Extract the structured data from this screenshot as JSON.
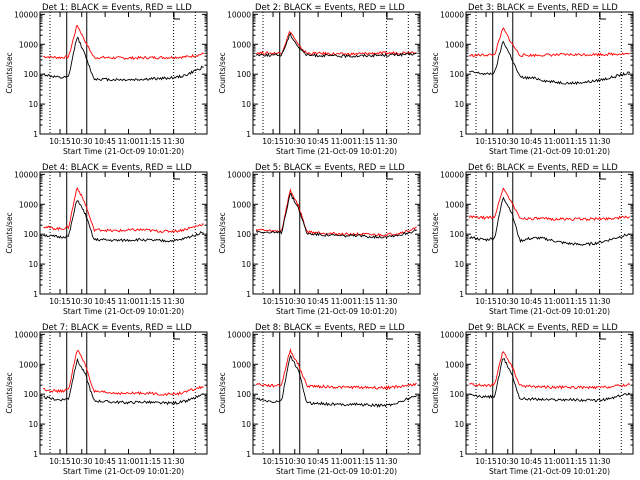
{
  "figure": {
    "description_line_colors": {
      "events": "#000000",
      "lld": "#ff0000"
    },
    "background": "#ffffff"
  },
  "chart_data": [
    {
      "type": "line",
      "detector": "1",
      "title": "Det 1: BLACK = Events, RED = LLD",
      "xlabel": "Start Time (21-Oct-09 10:01:20)",
      "ylabel": "Counts/sec",
      "xticks": [
        "10:15",
        "10:30",
        "10:45",
        "11:00",
        "11:15",
        "11:30"
      ],
      "yticks": [
        "1",
        "10",
        "100",
        "1000",
        "10000"
      ],
      "ylim": [
        1,
        12000
      ],
      "yscale": "log",
      "series": [
        {
          "name": "LLD",
          "color": "#ff0000",
          "values": [
            390,
            370,
            360,
            380,
            4500,
            1200,
            360,
            360,
            355,
            350,
            345,
            350,
            355,
            360,
            360,
            365,
            370,
            380,
            420,
            480
          ]
        },
        {
          "name": "Events",
          "color": "#000000",
          "values": [
            100,
            85,
            75,
            80,
            1900,
            400,
            70,
            68,
            66,
            66,
            65,
            66,
            68,
            70,
            72,
            75,
            80,
            95,
            130,
            180
          ]
        }
      ]
    },
    {
      "type": "line",
      "detector": "2",
      "title": "Det 2: BLACK = Events, RED = LLD",
      "xlabel": "Start Time (21-Oct-09 10:01:20)",
      "ylabel": "Counts/sec",
      "xticks": [
        "10:15",
        "10:30",
        "10:45",
        "11:00",
        "11:15",
        "11:30"
      ],
      "yticks": [
        "1",
        "10",
        "100",
        "1000",
        "10000"
      ],
      "ylim": [
        1,
        12000
      ],
      "yscale": "log",
      "series": [
        {
          "name": "LLD",
          "color": "#ff0000",
          "values": [
            520,
            510,
            500,
            510,
            2800,
            900,
            500,
            495,
            490,
            480,
            470,
            470,
            480,
            490,
            500,
            505,
            510,
            520,
            540,
            560
          ]
        },
        {
          "name": "Events",
          "color": "#000000",
          "values": [
            450,
            440,
            430,
            440,
            2200,
            800,
            430,
            425,
            420,
            410,
            400,
            400,
            410,
            420,
            430,
            435,
            440,
            450,
            460,
            480
          ]
        }
      ]
    },
    {
      "type": "line",
      "detector": "3",
      "title": "Det 3: BLACK = Events, RED = LLD",
      "xlabel": "Start Time (21-Oct-09 10:01:20)",
      "ylabel": "Counts/sec",
      "xticks": [
        "10:15",
        "10:30",
        "10:45",
        "11:00",
        "11:15",
        "11:30"
      ],
      "yticks": [
        "1",
        "10",
        "100",
        "1000",
        "10000"
      ],
      "ylim": [
        1,
        12000
      ],
      "yscale": "log",
      "series": [
        {
          "name": "LLD",
          "color": "#ff0000",
          "values": [
            420,
            430,
            440,
            450,
            3500,
            1100,
            430,
            430,
            430,
            440,
            440,
            445,
            450,
            450,
            455,
            460,
            460,
            470,
            480,
            480
          ]
        },
        {
          "name": "Events",
          "color": "#000000",
          "values": [
            120,
            110,
            100,
            110,
            1300,
            350,
            80,
            75,
            72,
            60,
            55,
            52,
            50,
            52,
            55,
            60,
            68,
            80,
            95,
            110
          ]
        }
      ]
    },
    {
      "type": "line",
      "detector": "4",
      "title": "Det 4: BLACK = Events, RED = LLD",
      "xlabel": "Start Time (21-Oct-09 10:01:20)",
      "ylabel": "Counts/sec",
      "xticks": [
        "10:15",
        "10:30",
        "10:45",
        "11:00",
        "11:15",
        "11:30"
      ],
      "yticks": [
        "1",
        "10",
        "100",
        "1000",
        "10000"
      ],
      "ylim": [
        1,
        12000
      ],
      "yscale": "log",
      "series": [
        {
          "name": "LLD",
          "color": "#ff0000",
          "values": [
            180,
            160,
            150,
            170,
            3800,
            1000,
            140,
            140,
            130,
            130,
            135,
            140,
            140,
            130,
            125,
            125,
            130,
            150,
            180,
            220
          ]
        },
        {
          "name": "Events",
          "color": "#000000",
          "values": [
            95,
            85,
            80,
            85,
            1500,
            450,
            65,
            65,
            62,
            62,
            63,
            65,
            65,
            62,
            60,
            60,
            62,
            75,
            95,
            120
          ]
        }
      ]
    },
    {
      "type": "line",
      "detector": "5",
      "title": "Det 5: BLACK = Events, RED = LLD",
      "xlabel": "Start Time (21-Oct-09 10:01:20)",
      "ylabel": "Counts/sec",
      "xticks": [
        "10:15",
        "10:30",
        "10:45",
        "11:00",
        "11:15",
        "11:30"
      ],
      "yticks": [
        "1",
        "10",
        "100",
        "1000",
        "10000"
      ],
      "ylim": [
        1,
        12000
      ],
      "yscale": "log",
      "series": [
        {
          "name": "LLD",
          "color": "#ff0000",
          "values": [
            145,
            135,
            125,
            130,
            2900,
            900,
            120,
            115,
            110,
            105,
            100,
            100,
            100,
            98,
            95,
            95,
            100,
            110,
            130,
            160
          ]
        },
        {
          "name": "Events",
          "color": "#000000",
          "values": [
            125,
            118,
            110,
            115,
            2300,
            750,
            105,
            100,
            95,
            92,
            88,
            88,
            88,
            85,
            82,
            82,
            88,
            95,
            112,
            135
          ]
        }
      ]
    },
    {
      "type": "line",
      "detector": "6",
      "title": "Det 6: BLACK = Events, RED = LLD",
      "xlabel": "Start Time (21-Oct-09 10:01:20)",
      "ylabel": "Counts/sec",
      "xticks": [
        "10:15",
        "10:30",
        "10:45",
        "11:00",
        "11:15",
        "11:30"
      ],
      "yticks": [
        "1",
        "10",
        "100",
        "1000",
        "10000"
      ],
      "ylim": [
        1,
        12000
      ],
      "yscale": "log",
      "series": [
        {
          "name": "LLD",
          "color": "#ff0000",
          "values": [
            380,
            360,
            350,
            380,
            3500,
            1200,
            340,
            335,
            330,
            325,
            320,
            320,
            320,
            320,
            320,
            325,
            330,
            340,
            360,
            380
          ]
        },
        {
          "name": "Events",
          "color": "#000000",
          "values": [
            80,
            70,
            65,
            75,
            1800,
            550,
            60,
            70,
            75,
            70,
            60,
            52,
            48,
            45,
            46,
            50,
            58,
            70,
            85,
            100
          ]
        }
      ]
    },
    {
      "type": "line",
      "detector": "7",
      "title": "Det 7: BLACK = Events, RED = LLD",
      "xlabel": "Start Time (21-Oct-09 10:01:20)",
      "ylabel": "Counts/sec",
      "xticks": [
        "10:15",
        "10:30",
        "10:45",
        "11:00",
        "11:15",
        "11:30"
      ],
      "yticks": [
        "1",
        "10",
        "100",
        "1000",
        "10000"
      ],
      "ylim": [
        1,
        12000
      ],
      "yscale": "log",
      "series": [
        {
          "name": "LLD",
          "color": "#ff0000",
          "values": [
            150,
            130,
            125,
            140,
            3200,
            950,
            120,
            115,
            110,
            108,
            105,
            108,
            110,
            105,
            100,
            100,
            105,
            120,
            150,
            180
          ]
        },
        {
          "name": "Events",
          "color": "#000000",
          "values": [
            80,
            70,
            65,
            72,
            1400,
            450,
            60,
            58,
            55,
            54,
            52,
            54,
            55,
            52,
            50,
            50,
            52,
            60,
            75,
            95
          ]
        }
      ]
    },
    {
      "type": "line",
      "detector": "8",
      "title": "Det 8: BLACK = Events, RED = LLD",
      "xlabel": "Start Time (21-Oct-09 10:01:20)",
      "ylabel": "Counts/sec",
      "xticks": [
        "10:15",
        "10:30",
        "10:45",
        "11:00",
        "11:15",
        "11:30"
      ],
      "yticks": [
        "1",
        "10",
        "100",
        "1000",
        "10000"
      ],
      "ylim": [
        1,
        12000
      ],
      "yscale": "log",
      "series": [
        {
          "name": "LLD",
          "color": "#ff0000",
          "values": [
            220,
            200,
            190,
            210,
            3000,
            950,
            190,
            185,
            180,
            175,
            170,
            170,
            170,
            168,
            165,
            165,
            170,
            180,
            200,
            220
          ]
        },
        {
          "name": "Events",
          "color": "#000000",
          "values": [
            70,
            60,
            55,
            60,
            2000,
            600,
            50,
            50,
            48,
            46,
            45,
            46,
            46,
            44,
            42,
            42,
            45,
            55,
            70,
            90
          ]
        }
      ]
    },
    {
      "type": "line",
      "detector": "9",
      "title": "Det 9: BLACK = Events, RED = LLD",
      "xlabel": "Start Time (21-Oct-09 10:01:20)",
      "ylabel": "Counts/sec",
      "xticks": [
        "10:15",
        "10:30",
        "10:45",
        "11:00",
        "11:15",
        "11:30"
      ],
      "yticks": [
        "1",
        "10",
        "100",
        "1000",
        "10000"
      ],
      "ylim": [
        1,
        12000
      ],
      "yscale": "log",
      "series": [
        {
          "name": "LLD",
          "color": "#ff0000",
          "values": [
            220,
            200,
            190,
            205,
            2800,
            900,
            190,
            185,
            180,
            175,
            170,
            170,
            170,
            168,
            165,
            165,
            170,
            180,
            195,
            210
          ]
        },
        {
          "name": "Events",
          "color": "#000000",
          "values": [
            95,
            85,
            80,
            85,
            1700,
            500,
            70,
            70,
            68,
            66,
            65,
            66,
            66,
            64,
            62,
            62,
            65,
            75,
            90,
            110
          ]
        }
      ]
    }
  ]
}
